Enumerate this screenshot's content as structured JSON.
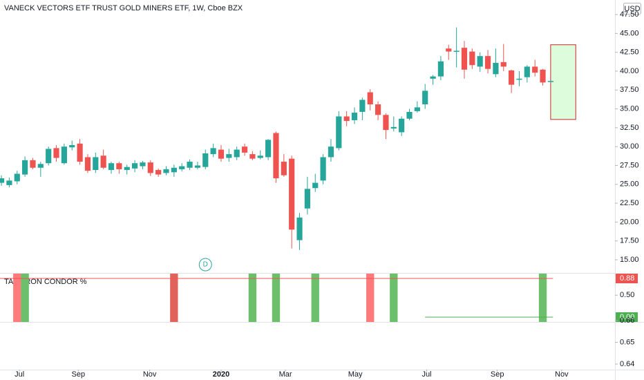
{
  "chart_data": [
    {
      "type": "candlestick",
      "title": "VANECK VECTORS ETF TRUST GOLD MINERS ETF, 1W, Cboe BZX",
      "currency": "USD",
      "up_color": "#26a69a",
      "down_color": "#ef5350",
      "open": [
        25.2,
        24.9,
        25.4,
        26.3,
        28.2,
        27.2,
        27.8,
        29.8,
        27.8,
        29.9,
        30.4,
        28.6,
        26.9,
        28.8,
        26.9,
        27.8,
        26.9,
        27.1,
        27.4,
        27.9,
        26.9,
        26.5,
        26.6,
        27.0,
        27.2,
        27.2,
        27.3,
        29.0,
        29.6,
        28.5,
        28.6,
        30.0,
        29.0,
        28.5,
        28.6,
        31.8,
        28.0,
        28.4,
        17.6,
        21.8,
        24.5,
        25.5,
        28.6,
        29.8,
        34.0,
        33.5,
        34.6,
        37.2,
        35.6,
        34.2,
        32.4,
        31.9,
        33.7,
        34.7,
        35.6,
        39.0,
        39.3,
        43.0,
        42.6,
        43.1,
        42.6,
        40.6,
        42.0,
        39.6,
        41.2,
        40.1,
        38.9,
        39.2,
        40.6,
        40.2,
        38.6
      ],
      "high": [
        26.2,
        25.9,
        26.8,
        28.7,
        28.5,
        28.0,
        30.0,
        30.2,
        30.4,
        30.8,
        31.0,
        29.0,
        29.2,
        29.6,
        28.0,
        28.0,
        27.6,
        28.2,
        28.1,
        28.2,
        27.1,
        27.4,
        27.6,
        27.8,
        28.3,
        28.0,
        29.6,
        30.4,
        30.2,
        29.7,
        30.0,
        30.4,
        29.4,
        29.5,
        31.0,
        32.0,
        29.0,
        28.8,
        21.2,
        26.0,
        26.4,
        29.0,
        31.0,
        34.7,
        34.7,
        35.2,
        36.5,
        37.6,
        36.0,
        34.4,
        34.0,
        34.0,
        35.0,
        36.0,
        38.3,
        39.5,
        42.0,
        43.5,
        45.8,
        44.0,
        43.0,
        42.5,
        42.8,
        43.0,
        43.6,
        40.2,
        40.0,
        40.8,
        41.5,
        40.3,
        38.8
      ],
      "low": [
        24.8,
        24.6,
        25.0,
        26.0,
        27.0,
        26.0,
        27.5,
        28.0,
        27.6,
        29.5,
        27.6,
        26.5,
        26.5,
        27.0,
        26.4,
        26.4,
        26.3,
        26.6,
        27.0,
        26.1,
        26.0,
        26.2,
        26.0,
        26.7,
        26.9,
        27.0,
        27.0,
        28.6,
        28.0,
        28.0,
        28.2,
        28.8,
        28.2,
        28.3,
        28.2,
        25.2,
        26.0,
        16.5,
        16.3,
        21.0,
        24.0,
        25.0,
        28.0,
        29.5,
        32.7,
        33.0,
        33.5,
        34.8,
        33.5,
        31.0,
        32.0,
        31.4,
        33.5,
        34.5,
        35.0,
        38.2,
        38.8,
        41.5,
        40.5,
        39.0,
        40.3,
        39.9,
        39.7,
        39.2,
        40.0,
        37.1,
        38.0,
        38.5,
        39.3,
        38.1,
        38.5
      ],
      "close": [
        25.8,
        25.5,
        26.4,
        28.2,
        27.2,
        27.7,
        29.7,
        28.5,
        30.0,
        30.2,
        28.0,
        26.8,
        28.6,
        27.2,
        27.8,
        27.0,
        27.3,
        27.8,
        27.9,
        26.5,
        26.3,
        27.0,
        27.2,
        27.4,
        28.0,
        27.5,
        29.1,
        29.8,
        28.4,
        29.0,
        29.6,
        29.2,
        28.4,
        28.8,
        30.9,
        25.8,
        26.2,
        19.0,
        20.6,
        24.4,
        25.2,
        28.6,
        30.0,
        34.0,
        33.4,
        34.5,
        36.2,
        35.6,
        34.2,
        32.2,
        32.6,
        33.7,
        34.6,
        35.2,
        37.4,
        39.3,
        41.3,
        42.6,
        42.7,
        40.2,
        40.8,
        42.0,
        40.3,
        41.1,
        40.6,
        38.2,
        39.0,
        40.6,
        39.8,
        38.5,
        38.7
      ],
      "xlim": [
        -0.18,
        78.2
      ],
      "xticks": [
        {
          "value": 2.3,
          "label": "Jul"
        },
        {
          "value": 9.8,
          "label": "Sep"
        },
        {
          "value": 18.9,
          "label": "Nov"
        },
        {
          "value": 28.0,
          "label": "2020"
        },
        {
          "value": 36.2,
          "label": "Mar"
        },
        {
          "value": 45.1,
          "label": "May"
        },
        {
          "value": 54.2,
          "label": "Jul"
        },
        {
          "value": 63.2,
          "label": "Sep"
        },
        {
          "value": 71.4,
          "label": "Nov"
        }
      ],
      "ylim": [
        13.26,
        49.43
      ],
      "yticks": [
        {
          "value": 15,
          "label": "15.00"
        },
        {
          "value": 17.5,
          "label": "17.50"
        },
        {
          "value": 20,
          "label": "20.00"
        },
        {
          "value": 22.5,
          "label": "22.50"
        },
        {
          "value": 25,
          "label": "25.00"
        },
        {
          "value": 27.5,
          "label": "27.50"
        },
        {
          "value": 30,
          "label": "30.00"
        },
        {
          "value": 32.5,
          "label": "32.50"
        },
        {
          "value": 35,
          "label": "35.00"
        },
        {
          "value": 37.5,
          "label": "37.50"
        },
        {
          "value": 40,
          "label": "40.00"
        },
        {
          "value": 42.5,
          "label": "42.50"
        },
        {
          "value": 45,
          "label": "45.00"
        },
        {
          "value": 47.5,
          "label": "47.50"
        }
      ],
      "box": {
        "x": [
          70,
          73.2
        ],
        "low": 33.6,
        "high": 43.5,
        "fill": "#dcfcdc",
        "stroke": "#c62828"
      },
      "marker": {
        "x": 26,
        "label": "D"
      }
    },
    {
      "type": "signal",
      "title": "TARI IRON CONDOR %",
      "ylim": [
        -0.11,
        1.006
      ],
      "yticks": [
        {
          "value": 0.5,
          "label": "0.50"
        }
      ],
      "bars": [
        {
          "x": 2,
          "color": "#ff7a7a"
        },
        {
          "x": 3,
          "color": "#6cc06c"
        },
        {
          "x": 22,
          "color": "#e0625a"
        },
        {
          "x": 32,
          "color": "#6cc06c"
        },
        {
          "x": 35,
          "color": "#6cc06c"
        },
        {
          "x": 40,
          "color": "#6cc06c"
        },
        {
          "x": 47,
          "color": "#ff7a7a"
        },
        {
          "x": 50,
          "color": "#6cc06c"
        },
        {
          "x": 69,
          "color": "#6cc06c"
        }
      ],
      "lines": [
        {
          "value": 0.88,
          "label": "0.88",
          "color": "#ef5350",
          "x": [
            -0.18,
            70.3
          ]
        },
        {
          "value": 0,
          "label": "0.00",
          "color": "#4caf50",
          "x": [
            54,
            70.3
          ]
        }
      ]
    },
    {
      "type": "empty",
      "ylim": [
        0.63746,
        0.65937
      ],
      "yticks": [
        {
          "value": 0.66,
          "label": "0.66"
        },
        {
          "value": 0.65,
          "label": "0.65"
        },
        {
          "value": 0.64,
          "label": "0.64"
        }
      ]
    }
  ]
}
